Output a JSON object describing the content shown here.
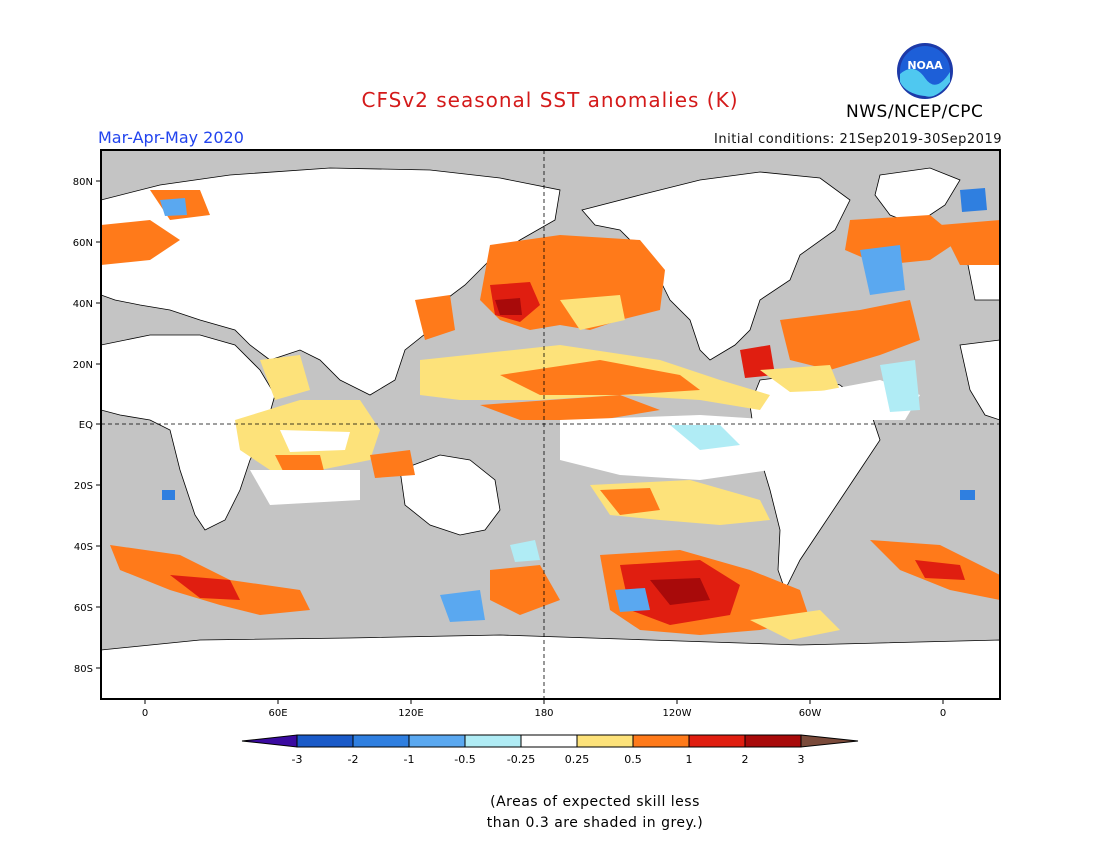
{
  "title": "CFSv2 seasonal SST anomalies (K)",
  "season": "Mar-Apr-May 2020",
  "initial_conditions": "Initial conditions: 21Sep2019-30Sep2019",
  "organization": "NWS/NCEP/CPC",
  "logo_text": "NOAA",
  "note_line1": "(Areas of expected skill less",
  "note_line2": "than 0.3 are shaded in grey.)",
  "lat_labels": [
    "80N",
    "60N",
    "40N",
    "20N",
    "EQ",
    "20S",
    "40S",
    "60S",
    "80S"
  ],
  "lon_labels": [
    "0",
    "60E",
    "120E",
    "180",
    "120W",
    "60W",
    "0"
  ],
  "colorbar": {
    "labels": [
      "-3",
      "-2",
      "-1",
      "-0.5",
      "-0.25",
      "0.25",
      "0.5",
      "1",
      "2",
      "3"
    ],
    "colors": [
      "#3a0aa0",
      "#1a5ac8",
      "#2f7fe0",
      "#5aa8f0",
      "#b0ecf5",
      "#ffffff",
      "#fde27a",
      "#ff7a1a",
      "#e01e10",
      "#a80a0a",
      "#7a4a3a"
    ]
  },
  "colors": {
    "skill_grey": "#c4c4c4",
    "land": "#ffffff",
    "title_red": "#d41a1a",
    "season_blue": "#2244ee"
  }
}
